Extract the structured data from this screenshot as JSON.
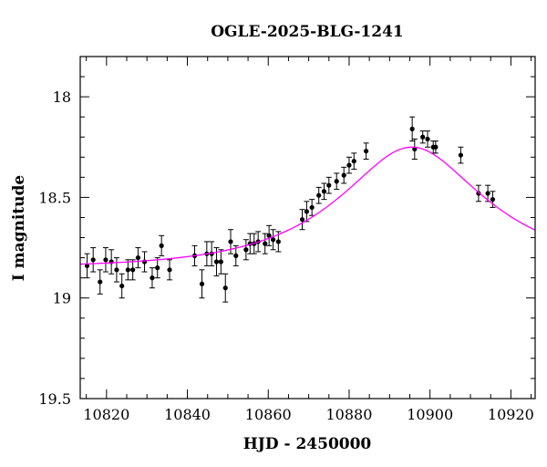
{
  "chart_data": {
    "type": "scatter",
    "title": "OGLE-2025-BLG-1241",
    "xlabel": "HJD - 2450000",
    "ylabel": "I magnitude",
    "xlim": [
      10813.5,
      10926
    ],
    "ylim": [
      19.5,
      17.8
    ],
    "y_inverted": true,
    "grid": false,
    "x_major_ticks": [
      10820,
      10840,
      10860,
      10880,
      10900,
      10920
    ],
    "x_minor_step": 5,
    "y_major_ticks": [
      18,
      18.5,
      19,
      19.5
    ],
    "y_minor_step": 0.1,
    "x_tick_labels": [
      "10820",
      "10840",
      "10860",
      "10880",
      "10900",
      "10920"
    ],
    "y_tick_labels": [
      "18",
      "18.5",
      "19",
      "19.5"
    ],
    "colors": {
      "points": "#000000",
      "model": "#ff00ff",
      "axes": "#000000"
    },
    "series": [
      {
        "kind": "points_with_errorbars",
        "x": [
          10815.2,
          10816.7,
          10818.4,
          10819.8,
          10821.2,
          10822.5,
          10823.8,
          10825.3,
          10826.5,
          10827.8,
          10829.4,
          10831.3,
          10832.6,
          10833.6,
          10835.6,
          10841.8,
          10843.6,
          10844.8,
          10846.0,
          10847.2,
          10848.3,
          10849.4,
          10850.7,
          10852.0,
          10854.5,
          10855.5,
          10856.5,
          10857.5,
          10859.2,
          10860.2,
          10861.2,
          10862.5,
          10868.4,
          10869.5,
          10870.8,
          10872.5,
          10873.8,
          10875.0,
          10876.9,
          10878.7,
          10880.0,
          10881.2,
          10884.2,
          10895.6,
          10896.2,
          10898.2,
          10899.4,
          10900.8,
          10901.4,
          10907.6,
          10912.0,
          10914.3,
          10915.5
        ],
        "y": [
          18.84,
          18.81,
          18.92,
          18.81,
          18.82,
          18.86,
          18.94,
          18.86,
          18.86,
          18.8,
          18.82,
          18.9,
          18.85,
          18.74,
          18.86,
          18.79,
          18.93,
          18.78,
          18.78,
          18.82,
          18.82,
          18.95,
          18.72,
          18.79,
          18.76,
          18.73,
          18.73,
          18.72,
          18.73,
          18.69,
          18.71,
          18.72,
          18.61,
          18.57,
          18.55,
          18.49,
          18.47,
          18.44,
          18.42,
          18.39,
          18.34,
          18.32,
          18.27,
          18.16,
          18.26,
          18.2,
          18.21,
          18.25,
          18.25,
          18.29,
          18.48,
          18.48,
          18.51
        ],
        "err": [
          0.06,
          0.06,
          0.06,
          0.06,
          0.06,
          0.06,
          0.06,
          0.05,
          0.05,
          0.05,
          0.05,
          0.05,
          0.05,
          0.05,
          0.05,
          0.05,
          0.07,
          0.06,
          0.06,
          0.07,
          0.06,
          0.07,
          0.06,
          0.05,
          0.05,
          0.05,
          0.05,
          0.05,
          0.05,
          0.05,
          0.05,
          0.05,
          0.05,
          0.05,
          0.04,
          0.04,
          0.04,
          0.04,
          0.04,
          0.04,
          0.04,
          0.04,
          0.04,
          0.06,
          0.05,
          0.03,
          0.04,
          0.03,
          0.03,
          0.04,
          0.04,
          0.04,
          0.04
        ]
      },
      {
        "kind": "model_curve",
        "baseline_mag": 18.85,
        "t0": 10895.5,
        "tE": 31,
        "u0": 0.5
      }
    ]
  }
}
